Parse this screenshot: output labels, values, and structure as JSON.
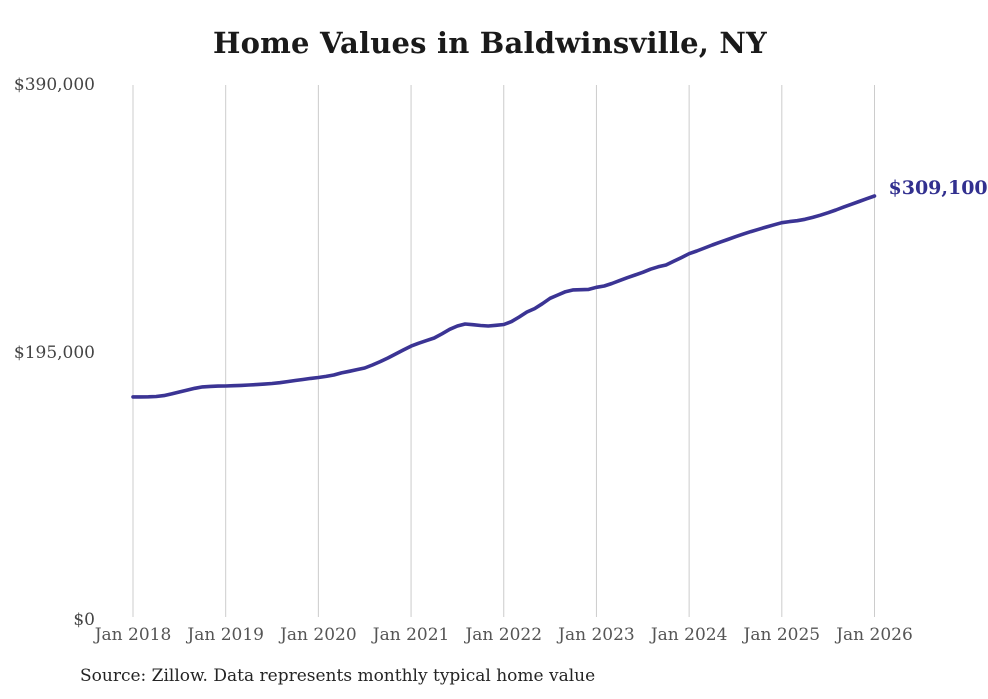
{
  "chart": {
    "title": "Home Values in Baldwinsville, NY",
    "end_label": "$309,100",
    "source_note": "Source: Zillow. Data represents monthly typical home value"
  },
  "chart_data": {
    "type": "line",
    "title": "Home Values in Baldwinsville, NY",
    "xlabel": "",
    "ylabel": "",
    "ylim": [
      0,
      390000
    ],
    "grid": "vertical-only",
    "legend_position": "none",
    "line_color": "#3b3494",
    "gridline_color": "#cccccc",
    "end_label": "$309,100",
    "end_label_color": "#32308f",
    "source_note": "Source: Zillow. Data represents monthly typical home value",
    "y_ticks": [
      {
        "label": "$390,000",
        "value": 390000
      },
      {
        "label": "$195,000",
        "value": 195000
      },
      {
        "label": "$0",
        "value": 0
      }
    ],
    "x_ticks": [
      {
        "label": "Jan 2018",
        "month_index": 0
      },
      {
        "label": "Jan 2019",
        "month_index": 12
      },
      {
        "label": "Jan 2020",
        "month_index": 24
      },
      {
        "label": "Jan 2021",
        "month_index": 36
      },
      {
        "label": "Jan 2022",
        "month_index": 48
      },
      {
        "label": "Jan 2023",
        "month_index": 60
      },
      {
        "label": "Jan 2024",
        "month_index": 72
      },
      {
        "label": "Jan 2025",
        "month_index": 84
      },
      {
        "label": "Jan 2026",
        "month_index": 96
      }
    ],
    "series": [
      {
        "name": "Typical home value",
        "interval": "monthly",
        "start_month": "2018-01",
        "end_month": "2026-01",
        "values": [
          162600,
          162600,
          162700,
          162900,
          163600,
          164800,
          166200,
          167600,
          168900,
          169900,
          170300,
          170500,
          170600,
          170800,
          171000,
          171300,
          171600,
          172000,
          172400,
          173000,
          173800,
          174600,
          175300,
          176100,
          176800,
          177600,
          178600,
          180100,
          181300,
          182500,
          183700,
          185900,
          188400,
          191000,
          193900,
          196800,
          199700,
          201800,
          203700,
          205600,
          208600,
          211900,
          214300,
          215800,
          215300,
          214700,
          214300,
          214800,
          215400,
          217500,
          220900,
          224500,
          227000,
          230600,
          234500,
          236900,
          239300,
          240600,
          240800,
          241000,
          242500,
          243500,
          245300,
          247400,
          249500,
          251500,
          253500,
          255700,
          257500,
          258800,
          261500,
          264200,
          267000,
          269000,
          271200,
          273400,
          275400,
          277400,
          279400,
          281300,
          283100,
          284800,
          286500,
          288100,
          289600,
          290400,
          291100,
          292100,
          293500,
          295100,
          296900,
          298900,
          301000,
          303000,
          305100,
          307100,
          309100
        ]
      }
    ]
  }
}
